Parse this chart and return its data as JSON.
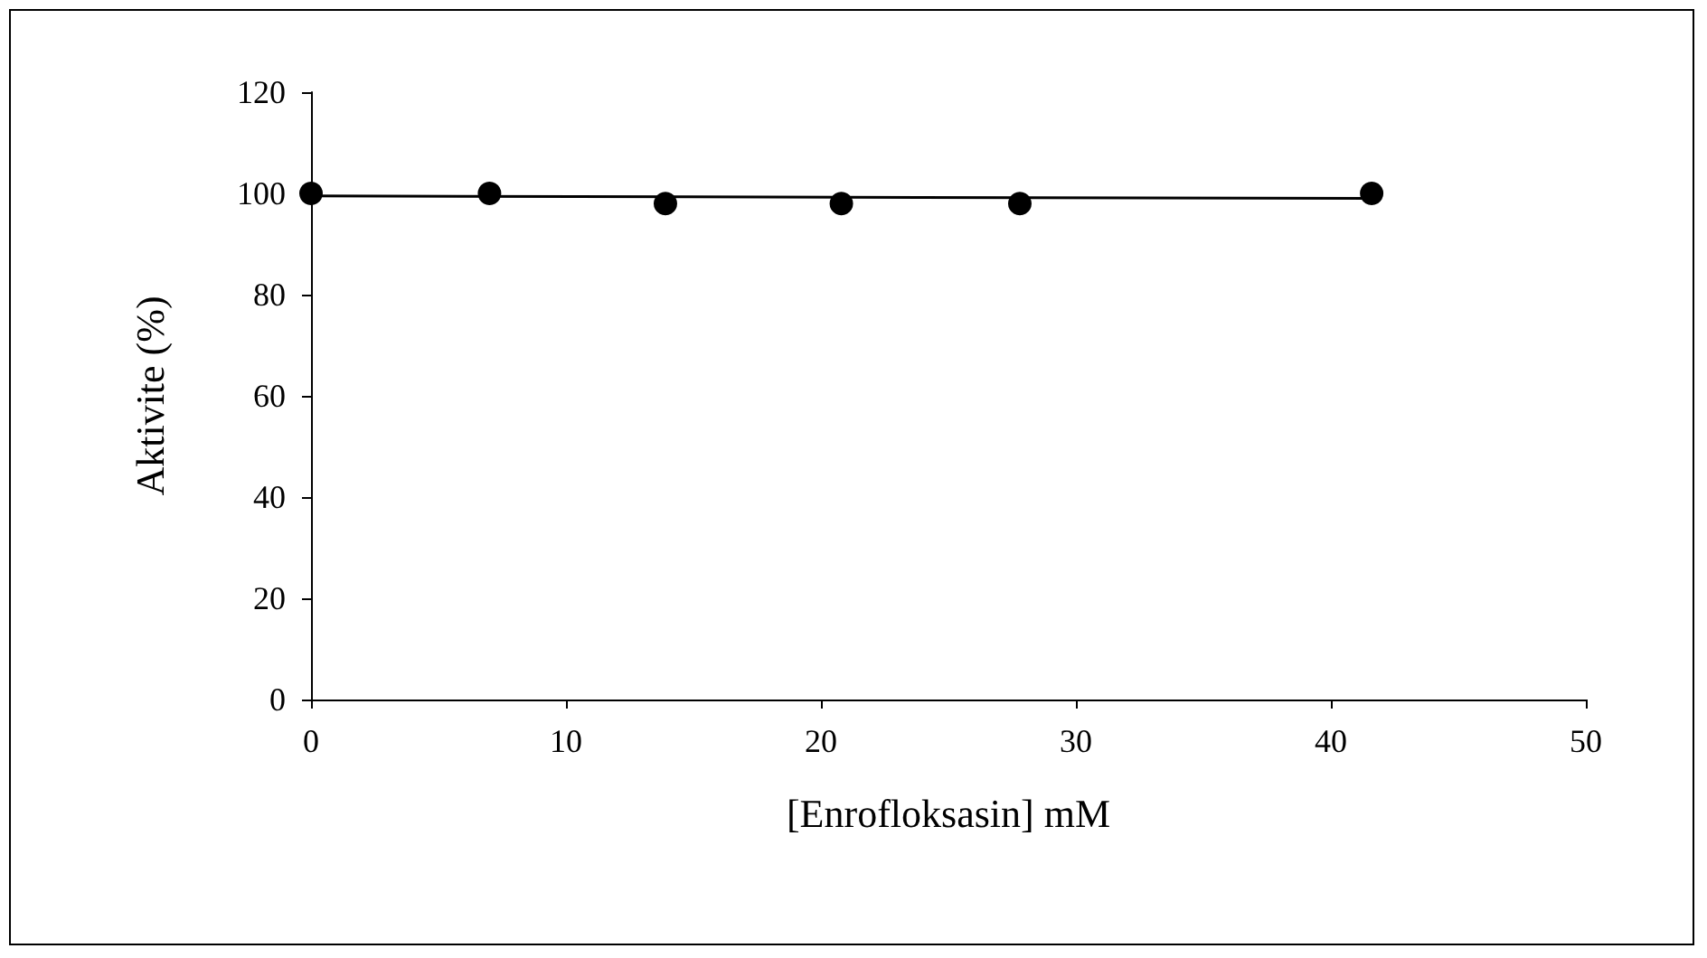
{
  "chart_data": {
    "type": "scatter",
    "xlabel": "[Enrofloksasin] mM",
    "ylabel": "Aktivite (%)",
    "xlim": [
      0,
      50
    ],
    "xticks": [
      0,
      10,
      20,
      30,
      40,
      50
    ],
    "ylim": [
      0,
      120
    ],
    "yticks": [
      0,
      20,
      40,
      60,
      80,
      100,
      120
    ],
    "grid": false,
    "series": [
      {
        "color": "#000000",
        "marker": "circle",
        "x": [
          0,
          7,
          13.9,
          20.8,
          27.8,
          41.6
        ],
        "values": [
          100,
          100,
          98,
          98,
          98,
          100
        ]
      },
      {
        "type": "line",
        "color": "#000000",
        "x": [
          0,
          41.6
        ],
        "values": [
          99.5,
          99
        ],
        "marker": "none",
        "line_style": "solid"
      }
    ]
  }
}
